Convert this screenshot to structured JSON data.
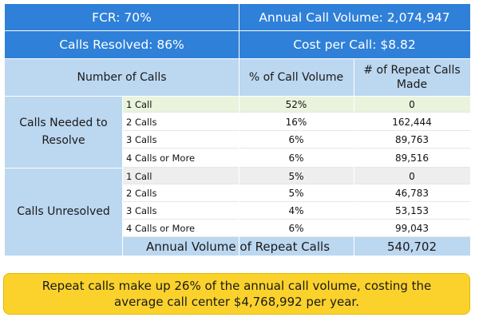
{
  "header": {
    "fcr": "FCR: 70%",
    "annual_volume": "Annual Call Volume: 2,074,947",
    "calls_resolved": "Calls Resolved: 86%",
    "cost_per_call": "Cost per Call: $8.82"
  },
  "columns": {
    "number_of_calls": "Number of Calls",
    "pct_volume": "% of Call Volume",
    "repeat_calls": "# of Repeat Calls Made"
  },
  "groups": {
    "resolve": "Calls Needed to Resolve",
    "unresolved": "Calls Unresolved"
  },
  "rows": [
    {
      "label": "1 Call",
      "pct": "52%",
      "repeat": "0"
    },
    {
      "label": "2 Calls",
      "pct": "16%",
      "repeat": "162,444"
    },
    {
      "label": "3 Calls",
      "pct": "6%",
      "repeat": "89,763"
    },
    {
      "label": "4 Calls or More",
      "pct": "6%",
      "repeat": "89,516"
    },
    {
      "label": "1 Call",
      "pct": "5%",
      "repeat": "0"
    },
    {
      "label": "2 Calls",
      "pct": "5%",
      "repeat": "46,783"
    },
    {
      "label": "3 Calls",
      "pct": "4%",
      "repeat": "53,153"
    },
    {
      "label": "4 Calls or More",
      "pct": "6%",
      "repeat": "99,043"
    }
  ],
  "totals": {
    "label": "Annual Volume of Repeat Calls",
    "value": "540,702"
  },
  "note": "Repeat calls make up 26% of the annual call volume, costing the average call center $4,768,992 per year.",
  "colors": {
    "header_blue": "#2f80d8",
    "light_blue": "#bcd7f0",
    "row_green": "#eaf3dc",
    "row_gray": "#eeeeee",
    "row_white": "#ffffff",
    "note_yellow": "#fbd22c"
  }
}
